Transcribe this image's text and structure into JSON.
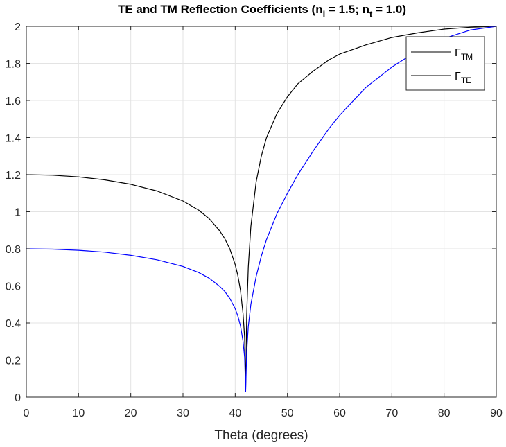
{
  "chart_data": {
    "type": "line",
    "title": {
      "main": "TE and TM Reflection Coefficients (n",
      "sub_i": "i",
      "mid": " = 1.5; n",
      "sub_t": "t",
      "end": " = 1.0)"
    },
    "xlabel": "Theta (degrees)",
    "ylabel": "",
    "xlim": [
      0,
      90
    ],
    "ylim": [
      0,
      2
    ],
    "xticks": [
      0,
      10,
      20,
      30,
      40,
      50,
      60,
      70,
      80,
      90
    ],
    "yticks": [
      0,
      0.2,
      0.4,
      0.6,
      0.8,
      1,
      1.2,
      1.4,
      1.6,
      1.8,
      2
    ],
    "xtick_labels": [
      "0",
      "10",
      "20",
      "30",
      "40",
      "50",
      "60",
      "70",
      "80",
      "90"
    ],
    "ytick_labels": [
      "0",
      "0.2",
      "0.4",
      "0.6",
      "0.8",
      "1",
      "1.2",
      "1.4",
      "1.6",
      "1.8",
      "2"
    ],
    "grid": true,
    "legend_position": "top-right",
    "series": [
      {
        "name": "Γ_TM",
        "legend_symbol": "Γ",
        "legend_sub": "TM",
        "color": "#000000",
        "x": [
          0,
          5,
          10,
          15,
          20,
          25,
          30,
          33,
          35,
          37,
          38,
          39,
          40,
          40.5,
          41,
          41.5,
          41.8,
          42,
          42.2,
          42.5,
          43,
          44,
          45,
          46,
          48,
          50,
          52,
          55,
          58,
          60,
          65,
          70,
          75,
          80,
          85,
          90
        ],
        "values": [
          1.2,
          1.197,
          1.188,
          1.172,
          1.148,
          1.112,
          1.058,
          1.009,
          0.963,
          0.898,
          0.855,
          0.797,
          0.715,
          0.657,
          0.577,
          0.452,
          0.323,
          0.04,
          0.44,
          0.7,
          0.92,
          1.16,
          1.3,
          1.4,
          1.53,
          1.62,
          1.69,
          1.76,
          1.82,
          1.85,
          1.9,
          1.94,
          1.965,
          1.985,
          1.995,
          2.0
        ]
      },
      {
        "name": "Γ_TE",
        "legend_symbol": "Γ",
        "legend_sub": "TE",
        "color": "#0000ff",
        "x": [
          0,
          5,
          10,
          15,
          20,
          25,
          30,
          33,
          35,
          37,
          38,
          39,
          40,
          40.5,
          41,
          41.5,
          41.8,
          42,
          42.2,
          42.5,
          43,
          44,
          45,
          46,
          48,
          50,
          52,
          55,
          58,
          60,
          65,
          70,
          75,
          80,
          85,
          90
        ],
        "values": [
          0.8,
          0.798,
          0.792,
          0.782,
          0.765,
          0.741,
          0.705,
          0.672,
          0.642,
          0.598,
          0.57,
          0.531,
          0.477,
          0.438,
          0.385,
          0.302,
          0.215,
          0.03,
          0.24,
          0.38,
          0.5,
          0.65,
          0.76,
          0.85,
          0.99,
          1.1,
          1.2,
          1.33,
          1.45,
          1.52,
          1.67,
          1.78,
          1.87,
          1.935,
          1.98,
          2.0
        ]
      }
    ]
  }
}
